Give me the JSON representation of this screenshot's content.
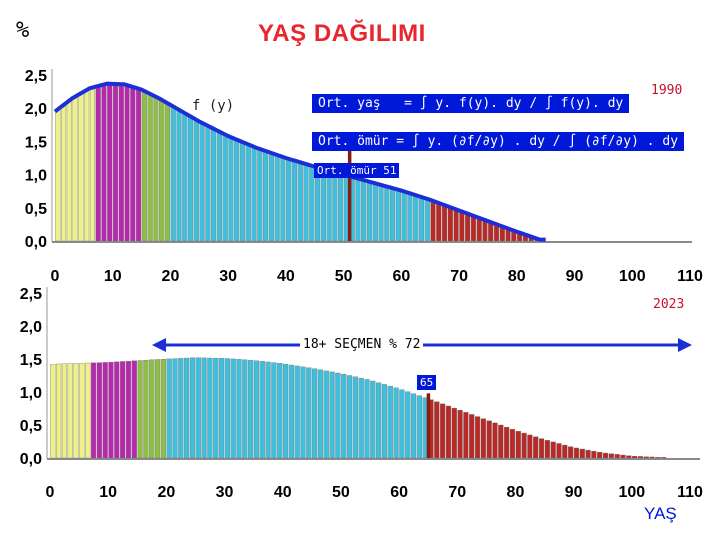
{
  "header": {
    "y_unit": "%",
    "title": "YAŞ DAĞILIMI"
  },
  "annotations": {
    "fy_label": "f (y)",
    "formula_1": "Ort. yaş   = ∫ y. f(y). dy / ∫ f(y). dy",
    "formula_2": "Ort. ömür = ∫ y. (∂f/∂y) . dy / ∫ (∂f/∂y) . dy",
    "ort_omur_label": "Ort. ömür 51",
    "secmen_label": "18+ SEÇMEN  % 72",
    "age65_label": "65",
    "x_axis_label": "YAŞ"
  },
  "colors": {
    "band_0_6": "#eef08a",
    "band_7_14": "#b629ad",
    "band_15_19": "#8fbe46",
    "band_20_64": "#40bfdc",
    "band_65_plus": "#b72a27",
    "marker": "#8a1a14",
    "curve": "#1c2fd6",
    "arrow": "#1c2fd6"
  },
  "chart_data": [
    {
      "type": "bar",
      "year_label": "1990",
      "xlabel": "",
      "ylabel": "%",
      "xlim": [
        0,
        110
      ],
      "ylim": [
        0,
        2.5
      ],
      "x_ticks": [
        "0",
        "10",
        "20",
        "30",
        "40",
        "50",
        "60",
        "70",
        "80",
        "90",
        "100",
        "110"
      ],
      "y_ticks": [
        "0,0",
        "0,5",
        "1,0",
        "1,5",
        "2,0",
        "2,5"
      ],
      "bar_ages": "0–84, one bar per year of age",
      "density_points": [
        [
          0,
          1.95
        ],
        [
          3,
          2.15
        ],
        [
          6,
          2.3
        ],
        [
          9,
          2.37
        ],
        [
          12,
          2.36
        ],
        [
          15,
          2.28
        ],
        [
          18,
          2.15
        ],
        [
          21,
          2.0
        ],
        [
          25,
          1.8
        ],
        [
          30,
          1.58
        ],
        [
          35,
          1.4
        ],
        [
          40,
          1.25
        ],
        [
          45,
          1.12
        ],
        [
          50,
          1.0
        ],
        [
          55,
          0.88
        ],
        [
          60,
          0.76
        ],
        [
          65,
          0.62
        ],
        [
          70,
          0.46
        ],
        [
          75,
          0.3
        ],
        [
          80,
          0.14
        ],
        [
          84,
          0.02
        ]
      ],
      "curve_overlay": true,
      "marker_age": 51,
      "grid": false
    },
    {
      "type": "bar",
      "year_label": "2023",
      "xlabel": "YAŞ",
      "ylabel": "%",
      "xlim": [
        0,
        110
      ],
      "ylim": [
        0,
        2.5
      ],
      "x_ticks": [
        "0",
        "10",
        "20",
        "30",
        "40",
        "50",
        "60",
        "70",
        "80",
        "90",
        "100",
        "110"
      ],
      "y_ticks": [
        "0,0",
        "0,5",
        "1,0",
        "1,5",
        "2,0",
        "2,5"
      ],
      "bar_ages": "0–105, one bar per year of age",
      "density_points": [
        [
          0,
          1.42
        ],
        [
          10,
          1.45
        ],
        [
          20,
          1.5
        ],
        [
          25,
          1.52
        ],
        [
          30,
          1.51
        ],
        [
          35,
          1.48
        ],
        [
          40,
          1.43
        ],
        [
          45,
          1.36
        ],
        [
          50,
          1.28
        ],
        [
          55,
          1.18
        ],
        [
          60,
          1.05
        ],
        [
          65,
          0.9
        ],
        [
          70,
          0.74
        ],
        [
          75,
          0.58
        ],
        [
          80,
          0.42
        ],
        [
          85,
          0.28
        ],
        [
          90,
          0.16
        ],
        [
          95,
          0.08
        ],
        [
          100,
          0.03
        ],
        [
          105,
          0.01
        ]
      ],
      "curve_overlay": false,
      "marker_age": 65,
      "arrow_range": [
        18,
        110
      ],
      "grid": false
    }
  ]
}
